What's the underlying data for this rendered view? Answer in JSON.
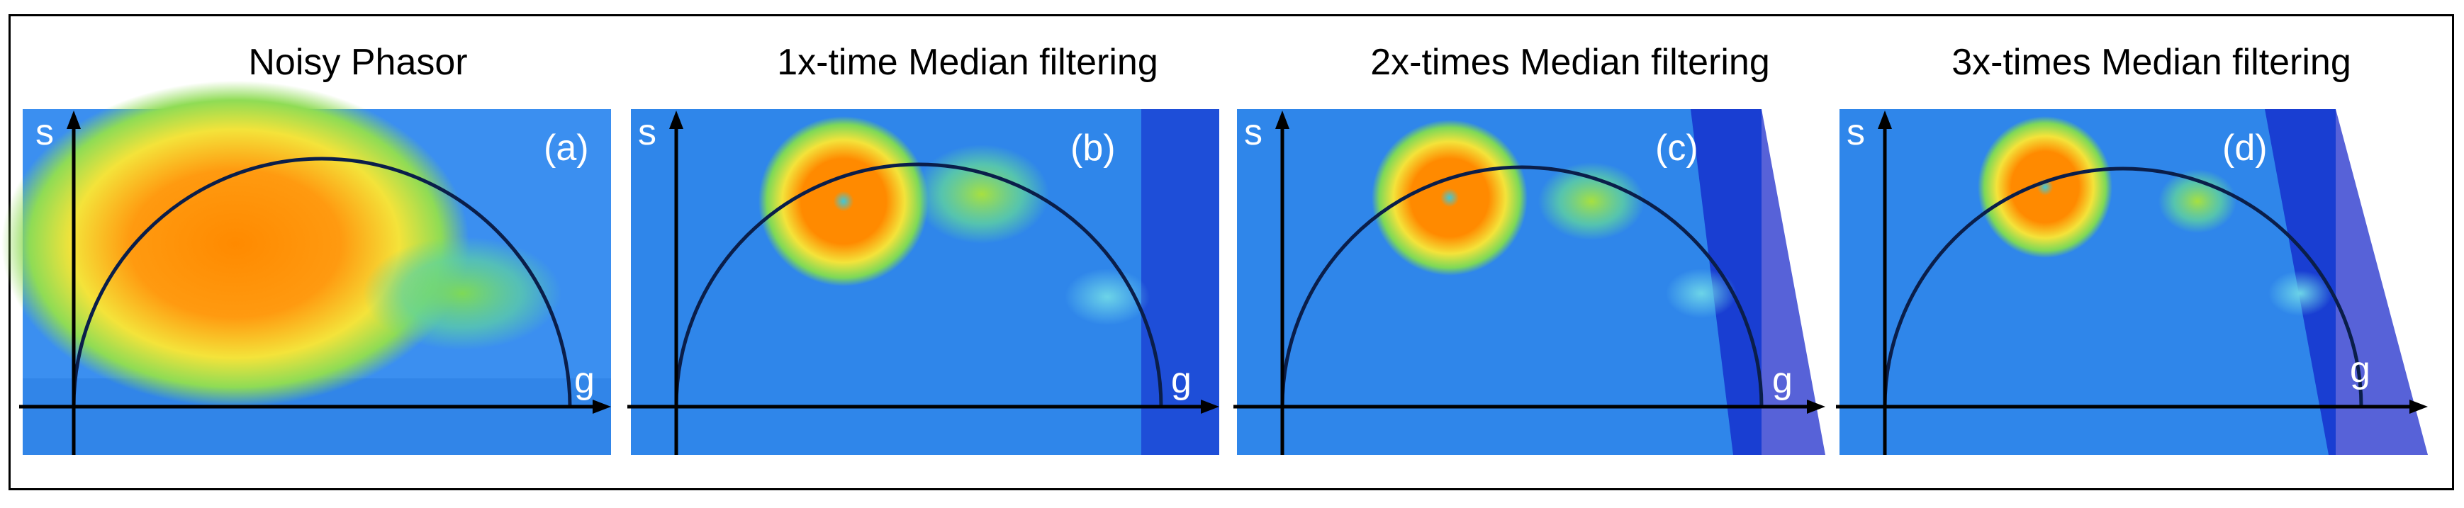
{
  "figure": {
    "panels": [
      {
        "title": "Noisy Phasor",
        "letter": "(a)",
        "axis_s": "s",
        "axis_g": "g",
        "background": "#3b8ff0",
        "cluster_main": "#ff8a00",
        "cluster_glow": "#f4e33a",
        "secondary_clusters": "#7ed957"
      },
      {
        "title": "1x-time Median filtering",
        "letter": "(b)",
        "axis_s": "s",
        "axis_g": "g",
        "background": "#2f86ea",
        "cluster_main": "#ff8a00",
        "cluster_glow": "#f4e33a",
        "secondary_clusters": "#7ed957"
      },
      {
        "title": "2x-times Median filtering",
        "letter": "(c)",
        "axis_s": "s",
        "axis_g": "g",
        "background": "#2f86ea",
        "cluster_main": "#ff8a00",
        "cluster_glow": "#f4e33a",
        "secondary_clusters": "#7ed957"
      },
      {
        "title": "3x-times Median filtering",
        "letter": "(d)",
        "axis_s": "s",
        "axis_g": "g",
        "background": "#2f86ea",
        "cluster_main": "#ff8a00",
        "cluster_glow": "#f4e33a",
        "secondary_clusters": "#7ed957"
      }
    ],
    "colors": {
      "frame": "#000000",
      "axis": "#000000",
      "semicircle": "#0a1e4a",
      "label_text": "#ffffff",
      "edge_blue": "#1020c8"
    }
  }
}
